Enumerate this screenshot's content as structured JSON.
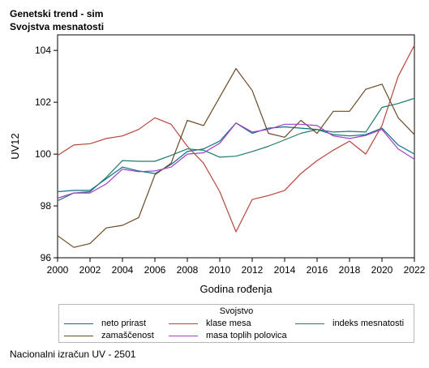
{
  "header": {
    "title": "Genetski trend - sim",
    "subtitle": "Svojstva mesnatosti"
  },
  "footnote": "Nacionalni izračun UV - 2501",
  "legend": {
    "title": "Svojstvo"
  },
  "colors": {
    "neto_prirast": "#0f6e85",
    "klase_mesa": "#b5473a",
    "indeks_mesnatosti": "#1f7b6e",
    "zamascenost": "#6a4a24",
    "masa_toplih_polovica": "#a340c8",
    "frame": "#000000"
  },
  "chart_data": {
    "type": "line",
    "xlabel": "Godina rođenja",
    "ylabel": "UV12",
    "xlim": [
      2000,
      2022
    ],
    "ylim": [
      96,
      104.6
    ],
    "xticks": [
      2000,
      2002,
      2004,
      2006,
      2008,
      2010,
      2012,
      2014,
      2016,
      2018,
      2020,
      2022
    ],
    "yticks": [
      96,
      98,
      100,
      102,
      104
    ],
    "grid": false,
    "legend_position": "bottom",
    "x": [
      2000,
      2001,
      2002,
      2003,
      2004,
      2005,
      2006,
      2007,
      2008,
      2009,
      2010,
      2011,
      2012,
      2013,
      2014,
      2015,
      2016,
      2017,
      2018,
      2019,
      2020,
      2021,
      2022
    ],
    "series": [
      {
        "name": "neto prirast",
        "key": "neto_prirast",
        "values": [
          98.55,
          98.6,
          98.6,
          99.05,
          99.5,
          99.35,
          99.25,
          99.6,
          100.1,
          100.2,
          100.5,
          101.2,
          100.8,
          101.0,
          101.05,
          101.0,
          100.95,
          100.75,
          100.7,
          100.75,
          101.0,
          100.35,
          100.0
        ]
      },
      {
        "name": "klase mesa",
        "key": "klase_mesa",
        "values": [
          99.95,
          100.35,
          100.4,
          100.6,
          100.7,
          100.95,
          101.4,
          101.15,
          100.3,
          99.65,
          98.55,
          97.0,
          98.25,
          98.4,
          98.6,
          99.25,
          99.75,
          100.15,
          100.5,
          100.0,
          101.1,
          103.0,
          104.2
        ]
      },
      {
        "name": "indeks mesnatosti",
        "key": "indeks_mesnatosti",
        "values": [
          98.2,
          98.5,
          98.55,
          99.1,
          99.75,
          99.72,
          99.72,
          99.95,
          100.2,
          100.15,
          99.88,
          99.92,
          100.1,
          100.3,
          100.55,
          100.8,
          100.95,
          100.85,
          100.88,
          100.85,
          101.8,
          101.95,
          102.15
        ]
      },
      {
        "name": "zamaščenost",
        "key": "zamascenost",
        "values": [
          96.85,
          96.4,
          96.55,
          97.15,
          97.25,
          97.55,
          99.2,
          99.65,
          101.3,
          101.1,
          102.2,
          103.3,
          102.45,
          100.8,
          100.65,
          101.3,
          100.8,
          101.65,
          101.65,
          102.5,
          102.7,
          101.4,
          100.75
        ]
      },
      {
        "name": "masa toplih polovica",
        "key": "masa_toplih_polovica",
        "values": [
          98.3,
          98.5,
          98.5,
          98.85,
          99.42,
          99.32,
          99.35,
          99.5,
          100.0,
          100.05,
          100.42,
          101.2,
          100.85,
          100.95,
          101.15,
          101.15,
          101.1,
          100.7,
          100.6,
          100.72,
          100.95,
          100.2,
          99.8
        ]
      }
    ]
  }
}
